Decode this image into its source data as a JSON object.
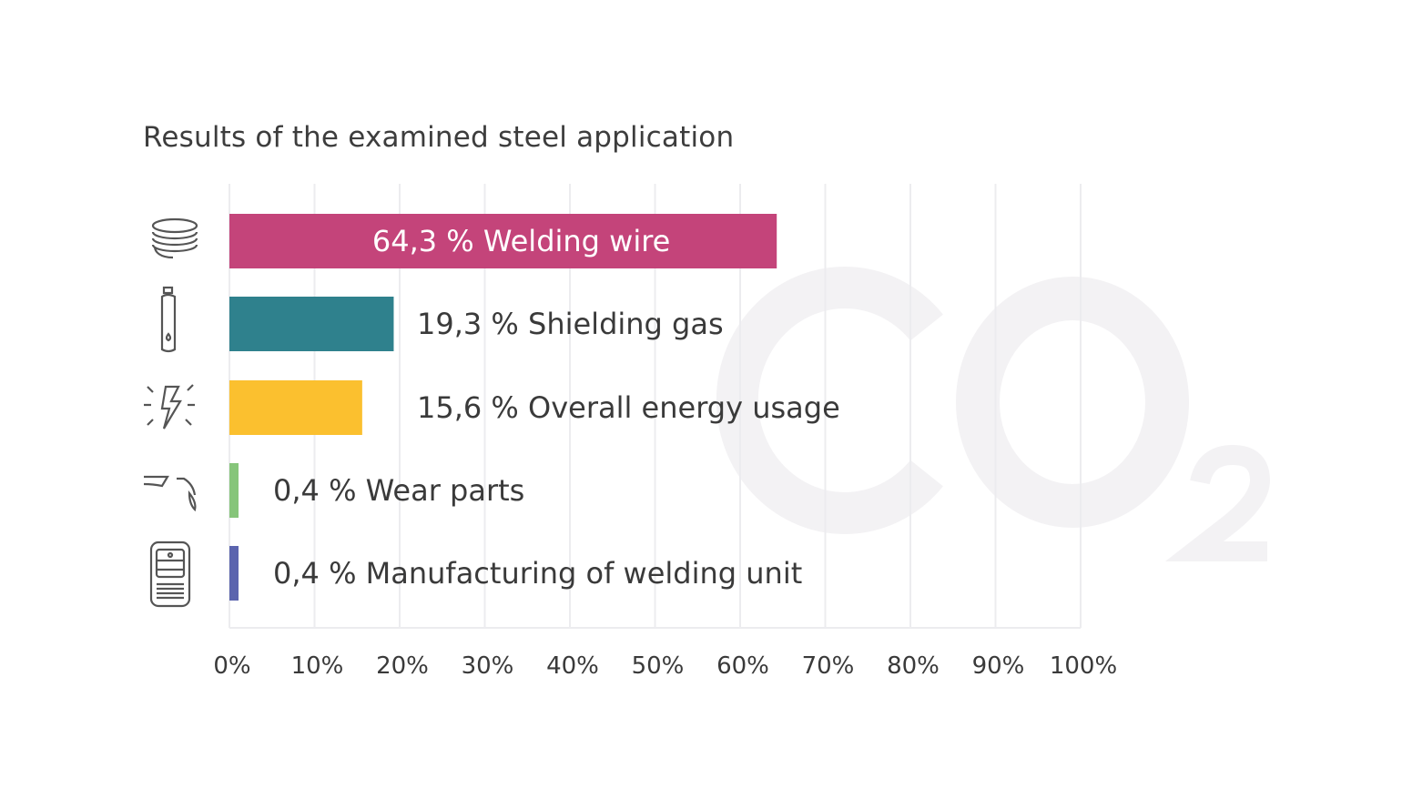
{
  "chart_data": {
    "type": "bar",
    "orientation": "horizontal",
    "title": "Results of the examined steel application",
    "categories": [
      "Welding wire",
      "Shielding gas",
      "Overall energy usage",
      "Wear parts",
      "Manufacturing of welding unit"
    ],
    "values": [
      64.3,
      19.3,
      15.6,
      0.4,
      0.4
    ],
    "data_labels": [
      "64,3 % Welding wire",
      "19,3 % Shielding gas",
      "15,6 % Overall energy usage",
      "0,4 % Wear parts",
      "0,4 % Manufacturing of welding unit"
    ],
    "colors": [
      "#c4447a",
      "#2f818d",
      "#fbc02f",
      "#86c57a",
      "#5b64ae"
    ],
    "icons": [
      "wire-coil-icon",
      "gas-bottle-icon",
      "energy-lightning-icon",
      "welding-torch-icon",
      "welding-unit-icon"
    ],
    "xlim": [
      0,
      100
    ],
    "xticks": [
      "0%",
      "10%",
      "20%",
      "30%",
      "40%",
      "50%",
      "60%",
      "70%",
      "80%",
      "90%",
      "100%"
    ],
    "grid": true,
    "legend": "none"
  },
  "watermark": {
    "main": "CO",
    "sub": "2"
  }
}
